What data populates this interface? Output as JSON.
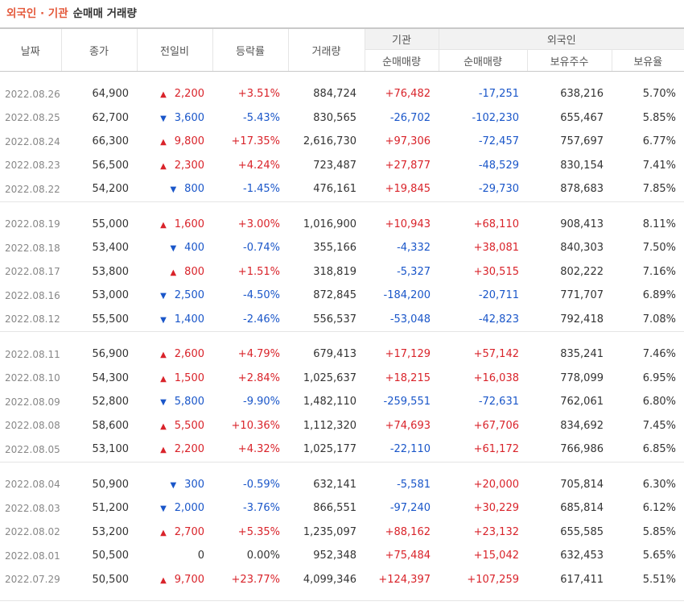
{
  "title": {
    "accent": "외국인 · 기관",
    "main": "순매매 거래량"
  },
  "colors": {
    "up": "#d9232a",
    "down": "#1a56c9",
    "accent": "#e4593b"
  },
  "icons": {
    "up": "▲",
    "down": "▼"
  },
  "headers": {
    "date": "날짜",
    "close": "종가",
    "change": "전일비",
    "rate": "등락률",
    "volume": "거래량",
    "inst_group": "기관",
    "inst_net": "순매매량",
    "foreign_group": "외국인",
    "foreign_net": "순매매량",
    "foreign_hold": "보유주수",
    "foreign_ratio": "보유율"
  },
  "rows": [
    {
      "date": "2022.08.26",
      "close": "64,900",
      "dir": "up",
      "change": "2,200",
      "rate": "+3.51%",
      "volume": "884,724",
      "inst": "+76,482",
      "foreign": "-17,251",
      "hold": "638,216",
      "ratio": "5.70%"
    },
    {
      "date": "2022.08.25",
      "close": "62,700",
      "dir": "down",
      "change": "3,600",
      "rate": "-5.43%",
      "volume": "830,565",
      "inst": "-26,702",
      "foreign": "-102,230",
      "hold": "655,467",
      "ratio": "5.85%"
    },
    {
      "date": "2022.08.24",
      "close": "66,300",
      "dir": "up",
      "change": "9,800",
      "rate": "+17.35%",
      "volume": "2,616,730",
      "inst": "+97,306",
      "foreign": "-72,457",
      "hold": "757,697",
      "ratio": "6.77%"
    },
    {
      "date": "2022.08.23",
      "close": "56,500",
      "dir": "up",
      "change": "2,300",
      "rate": "+4.24%",
      "volume": "723,487",
      "inst": "+27,877",
      "foreign": "-48,529",
      "hold": "830,154",
      "ratio": "7.41%"
    },
    {
      "date": "2022.08.22",
      "close": "54,200",
      "dir": "down",
      "change": "800",
      "rate": "-1.45%",
      "volume": "476,161",
      "inst": "+19,845",
      "foreign": "-29,730",
      "hold": "878,683",
      "ratio": "7.85%"
    },
    {
      "date": "2022.08.19",
      "close": "55,000",
      "dir": "up",
      "change": "1,600",
      "rate": "+3.00%",
      "volume": "1,016,900",
      "inst": "+10,943",
      "foreign": "+68,110",
      "hold": "908,413",
      "ratio": "8.11%"
    },
    {
      "date": "2022.08.18",
      "close": "53,400",
      "dir": "down",
      "change": "400",
      "rate": "-0.74%",
      "volume": "355,166",
      "inst": "-4,332",
      "foreign": "+38,081",
      "hold": "840,303",
      "ratio": "7.50%"
    },
    {
      "date": "2022.08.17",
      "close": "53,800",
      "dir": "up",
      "change": "800",
      "rate": "+1.51%",
      "volume": "318,819",
      "inst": "-5,327",
      "foreign": "+30,515",
      "hold": "802,222",
      "ratio": "7.16%"
    },
    {
      "date": "2022.08.16",
      "close": "53,000",
      "dir": "down",
      "change": "2,500",
      "rate": "-4.50%",
      "volume": "872,845",
      "inst": "-184,200",
      "foreign": "-20,711",
      "hold": "771,707",
      "ratio": "6.89%"
    },
    {
      "date": "2022.08.12",
      "close": "55,500",
      "dir": "down",
      "change": "1,400",
      "rate": "-2.46%",
      "volume": "556,537",
      "inst": "-53,048",
      "foreign": "-42,823",
      "hold": "792,418",
      "ratio": "7.08%"
    },
    {
      "date": "2022.08.11",
      "close": "56,900",
      "dir": "up",
      "change": "2,600",
      "rate": "+4.79%",
      "volume": "679,413",
      "inst": "+17,129",
      "foreign": "+57,142",
      "hold": "835,241",
      "ratio": "7.46%"
    },
    {
      "date": "2022.08.10",
      "close": "54,300",
      "dir": "up",
      "change": "1,500",
      "rate": "+2.84%",
      "volume": "1,025,637",
      "inst": "+18,215",
      "foreign": "+16,038",
      "hold": "778,099",
      "ratio": "6.95%"
    },
    {
      "date": "2022.08.09",
      "close": "52,800",
      "dir": "down",
      "change": "5,800",
      "rate": "-9.90%",
      "volume": "1,482,110",
      "inst": "-259,551",
      "foreign": "-72,631",
      "hold": "762,061",
      "ratio": "6.80%"
    },
    {
      "date": "2022.08.08",
      "close": "58,600",
      "dir": "up",
      "change": "5,500",
      "rate": "+10.36%",
      "volume": "1,112,320",
      "inst": "+74,693",
      "foreign": "+67,706",
      "hold": "834,692",
      "ratio": "7.45%"
    },
    {
      "date": "2022.08.05",
      "close": "53,100",
      "dir": "up",
      "change": "2,200",
      "rate": "+4.32%",
      "volume": "1,025,177",
      "inst": "-22,110",
      "foreign": "+61,172",
      "hold": "766,986",
      "ratio": "6.85%"
    },
    {
      "date": "2022.08.04",
      "close": "50,900",
      "dir": "down",
      "change": "300",
      "rate": "-0.59%",
      "volume": "632,141",
      "inst": "-5,581",
      "foreign": "+20,000",
      "hold": "705,814",
      "ratio": "6.30%"
    },
    {
      "date": "2022.08.03",
      "close": "51,200",
      "dir": "down",
      "change": "2,000",
      "rate": "-3.76%",
      "volume": "866,551",
      "inst": "-97,240",
      "foreign": "+30,229",
      "hold": "685,814",
      "ratio": "6.12%"
    },
    {
      "date": "2022.08.02",
      "close": "53,200",
      "dir": "up",
      "change": "2,700",
      "rate": "+5.35%",
      "volume": "1,235,097",
      "inst": "+88,162",
      "foreign": "+23,132",
      "hold": "655,585",
      "ratio": "5.85%"
    },
    {
      "date": "2022.08.01",
      "close": "50,500",
      "dir": "flat",
      "change": "0",
      "rate": "0.00%",
      "volume": "952,348",
      "inst": "+75,484",
      "foreign": "+15,042",
      "hold": "632,453",
      "ratio": "5.65%"
    },
    {
      "date": "2022.07.29",
      "close": "50,500",
      "dir": "up",
      "change": "9,700",
      "rate": "+23.77%",
      "volume": "4,099,346",
      "inst": "+124,397",
      "foreign": "+107,259",
      "hold": "617,411",
      "ratio": "5.51%"
    }
  ]
}
